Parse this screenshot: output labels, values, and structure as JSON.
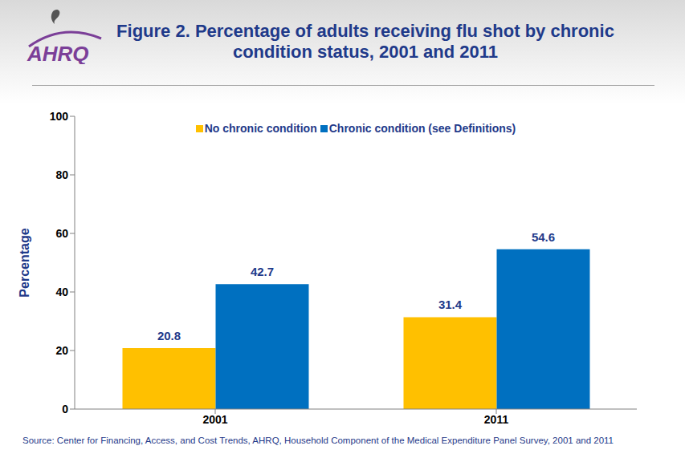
{
  "chart_data": {
    "type": "bar",
    "title": "Figure 2. Percentage of adults receiving flu shot by chronic condition status, 2001 and 2011",
    "logo": "AHRQ",
    "source": "Source: Center for Financing, Access, and Cost Trends, AHRQ, Household Component of the Medical Expenditure Panel Survey, 2001 and 2011",
    "categories": [
      "2001",
      "2011"
    ],
    "series": [
      {
        "name": "No chronic condition",
        "color": "#FFC000",
        "values": [
          20.8,
          31.4
        ]
      },
      {
        "name": "Chronic condition (see Definitions)",
        "color": "#0070C0",
        "values": [
          42.7,
          54.6
        ]
      }
    ],
    "ylabel": "Percentage",
    "ylim": [
      0,
      100
    ],
    "yticks": [
      0,
      20,
      40,
      60,
      80,
      100
    ],
    "grid": false,
    "legend": "top",
    "data_labels": true
  }
}
